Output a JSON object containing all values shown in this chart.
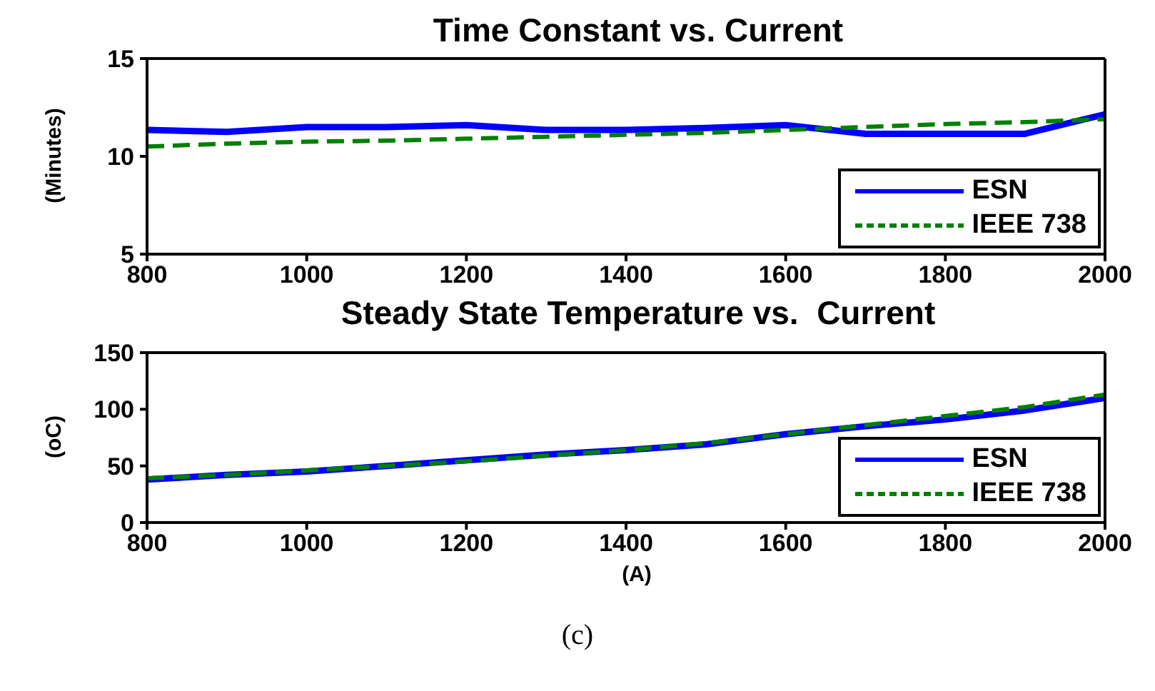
{
  "chart_data": [
    {
      "type": "line",
      "title": "Time Constant vs. Current",
      "ylabel": "(Minutes)",
      "x": [
        800,
        900,
        1000,
        1100,
        1200,
        1300,
        1400,
        1500,
        1600,
        1700,
        1800,
        1900,
        2000
      ],
      "xlim": [
        800,
        2000
      ],
      "xticks": [
        800,
        1000,
        1200,
        1400,
        1600,
        1800,
        2000
      ],
      "ylim": [
        5,
        15
      ],
      "yticks": [
        5,
        10,
        15
      ],
      "legend": "bottom right",
      "series": [
        {
          "name": "ESN",
          "color": "#0000ff",
          "line_style": "solid",
          "values": [
            11.35,
            11.25,
            11.5,
            11.5,
            11.6,
            11.35,
            11.35,
            11.45,
            11.6,
            11.15,
            11.15,
            11.15,
            12.15
          ]
        },
        {
          "name": "IEEE 738",
          "color": "#008000",
          "line_style": "dashed",
          "values": [
            10.5,
            10.65,
            10.75,
            10.8,
            10.9,
            11.0,
            11.1,
            11.2,
            11.35,
            11.5,
            11.65,
            11.75,
            11.9
          ]
        }
      ]
    },
    {
      "type": "line",
      "title": "Steady State Temperature vs.  Current",
      "ylabel": "(oC)",
      "xlabel": "(A)",
      "x": [
        800,
        900,
        1000,
        1100,
        1200,
        1300,
        1400,
        1500,
        1600,
        1700,
        1800,
        1900,
        2000
      ],
      "xlim": [
        800,
        2000
      ],
      "xticks": [
        800,
        1000,
        1200,
        1400,
        1600,
        1800,
        2000
      ],
      "ylim": [
        0,
        150
      ],
      "yticks": [
        0,
        50,
        100,
        150
      ],
      "legend": "bottom right",
      "annotations": [
        "(c)"
      ],
      "series": [
        {
          "name": "ESN",
          "color": "#0000ff",
          "line_style": "solid",
          "values": [
            38,
            42,
            45,
            50,
            55,
            60,
            64,
            69,
            78,
            85,
            91,
            99,
            110
          ]
        },
        {
          "name": "IEEE 738",
          "color": "#008000",
          "line_style": "dashed",
          "values": [
            39,
            42,
            46,
            50,
            54,
            59,
            64,
            70,
            78,
            86,
            94,
            102,
            113
          ]
        }
      ]
    }
  ]
}
